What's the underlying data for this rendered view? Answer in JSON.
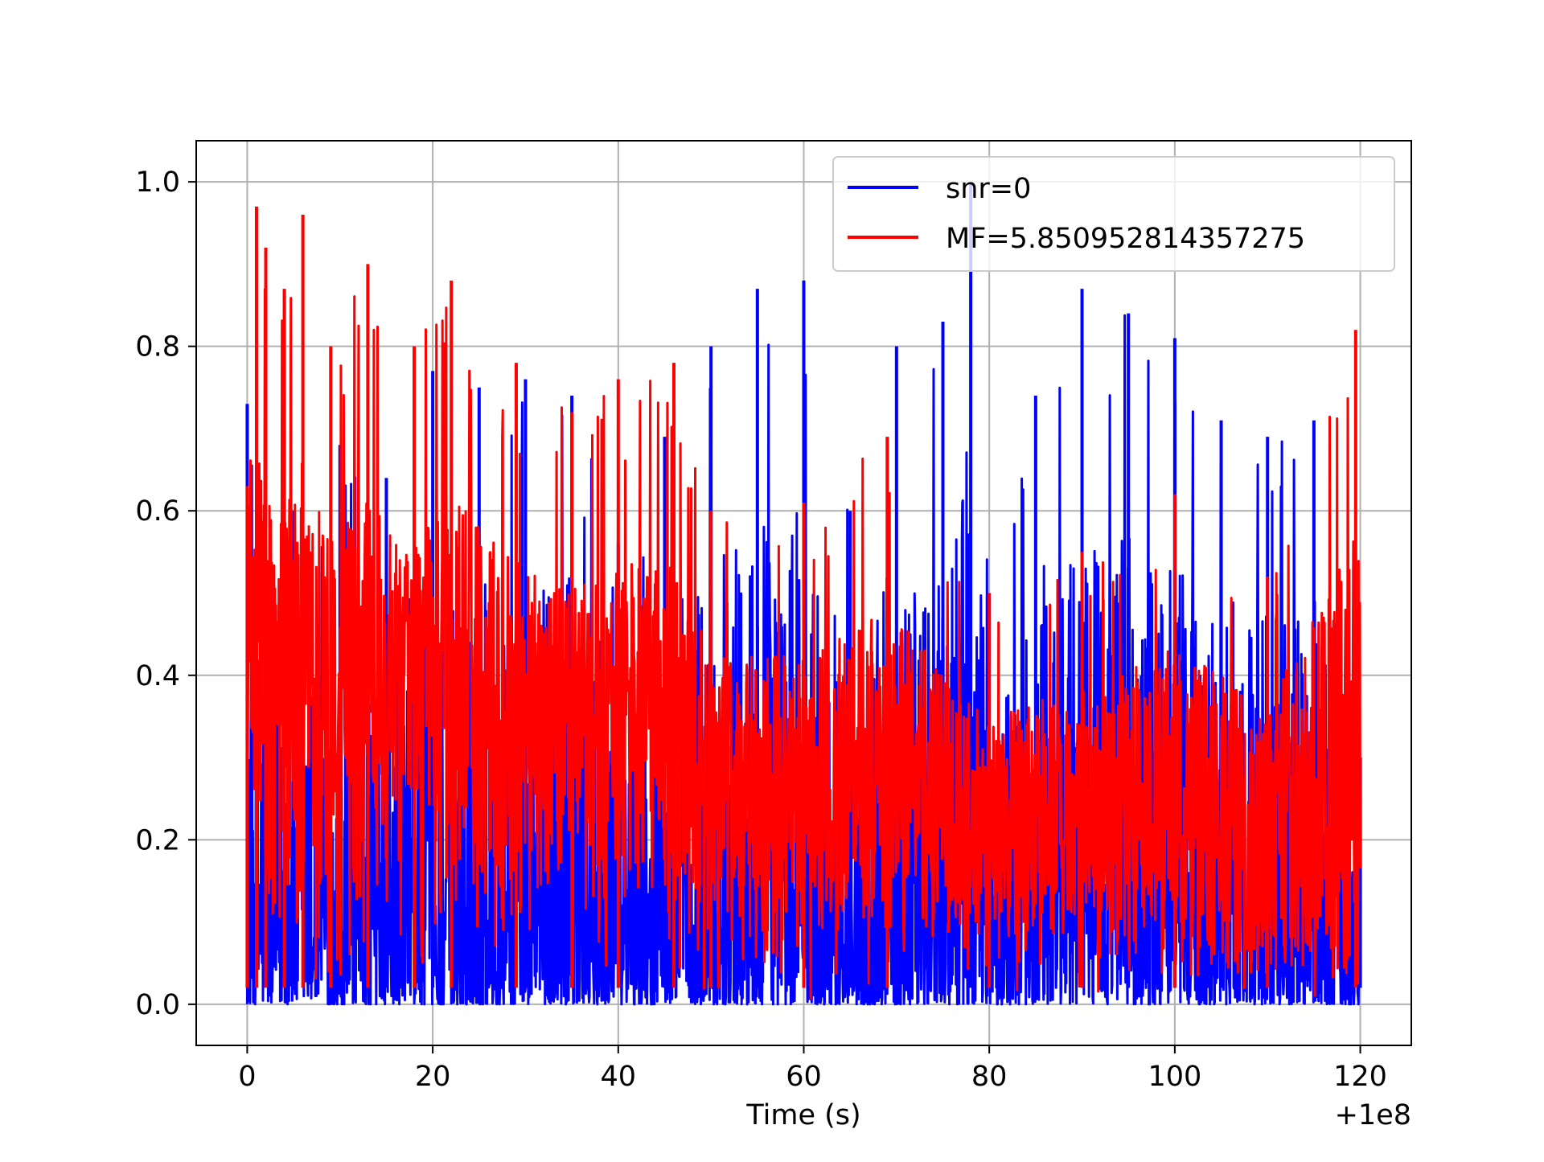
{
  "chart_data": {
    "type": "line",
    "title": "",
    "xlabel": "Time (s)",
    "ylabel": "",
    "x_offset_label": "+1e8",
    "xlim": [
      -5.5,
      125.5
    ],
    "ylim": [
      -0.05,
      1.05
    ],
    "xticks": [
      0,
      20,
      40,
      60,
      80,
      100,
      120
    ],
    "xtick_labels": [
      "0",
      "20",
      "40",
      "60",
      "80",
      "100",
      "120"
    ],
    "yticks": [
      0.0,
      0.2,
      0.4,
      0.6,
      0.8,
      1.0
    ],
    "ytick_labels": [
      "0.0",
      "0.2",
      "0.4",
      "0.6",
      "0.8",
      "1.0"
    ],
    "grid": true,
    "legend_position": "top-right",
    "series": [
      {
        "name": "snr=0",
        "color": "#0000ff",
        "x": [
          0,
          5,
          10,
          15,
          20,
          25,
          30,
          35,
          40,
          45,
          50,
          55,
          60,
          65,
          70,
          75,
          78,
          80,
          85,
          90,
          95,
          100,
          105,
          110,
          115,
          120
        ],
        "values": [
          0.73,
          0.6,
          0.68,
          0.64,
          0.77,
          0.75,
          0.76,
          0.74,
          0.56,
          0.69,
          0.8,
          0.87,
          0.88,
          0.6,
          0.8,
          0.83,
          1.0,
          0.5,
          0.74,
          0.87,
          0.84,
          0.81,
          0.71,
          0.69,
          0.71,
          0.3
        ]
      },
      {
        "name": "MF=5.850952814357275",
        "color": "#ff0000",
        "x": [
          0,
          1,
          2,
          4,
          6,
          9,
          13,
          18,
          22,
          29,
          35,
          40,
          46,
          50,
          60,
          69,
          80,
          90,
          100,
          110,
          119.5
        ],
        "values": [
          0.63,
          0.97,
          0.92,
          0.87,
          0.96,
          0.8,
          0.9,
          0.8,
          0.88,
          0.78,
          0.72,
          0.76,
          0.78,
          0.6,
          0.61,
          0.69,
          0.5,
          0.55,
          0.62,
          0.52,
          0.82
        ]
      }
    ]
  }
}
